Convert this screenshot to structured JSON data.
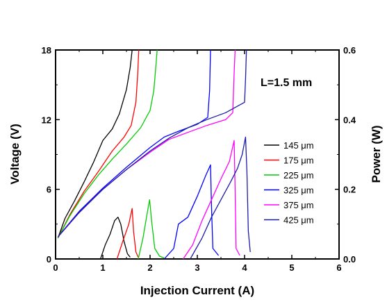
{
  "chart_data": {
    "type": "line",
    "annotation": "L=1.5 mm",
    "xlabel": "Injection Current (A)",
    "ylabel_left": "Voltage (V)",
    "ylabel_right": "Power (W)",
    "xlim": [
      0,
      6
    ],
    "ylim_left": [
      0,
      18
    ],
    "ylim_right": [
      0,
      0.6
    ],
    "x_ticks": [
      "0",
      "1",
      "2",
      "3",
      "4",
      "5",
      "6"
    ],
    "y_left_ticks": [
      "0",
      "6",
      "12",
      "18"
    ],
    "y_right_ticks": [
      "0.0",
      "0.2",
      "0.4",
      "0.6"
    ],
    "legend_position": "right-center",
    "series": [
      {
        "name": "145 μm",
        "color": "#000000",
        "voltage": [
          [
            0.05,
            1.8
          ],
          [
            0.2,
            3.5
          ],
          [
            0.4,
            5.0
          ],
          [
            0.6,
            6.6
          ],
          [
            0.8,
            8.3
          ],
          [
            1.0,
            10.2
          ],
          [
            1.2,
            11.2
          ],
          [
            1.35,
            12.5
          ],
          [
            1.5,
            14.6
          ],
          [
            1.58,
            16.5
          ],
          [
            1.62,
            18.0
          ]
        ],
        "power": [
          [
            0.95,
            0.0
          ],
          [
            1.05,
            0.04
          ],
          [
            1.15,
            0.07
          ],
          [
            1.25,
            0.11
          ],
          [
            1.32,
            0.12
          ],
          [
            1.38,
            0.1
          ],
          [
            1.45,
            0.05
          ],
          [
            1.52,
            0.015
          ],
          [
            1.58,
            0.005
          ]
        ]
      },
      {
        "name": "175 μm",
        "color": "#ff0000",
        "voltage": [
          [
            0.05,
            1.8
          ],
          [
            0.3,
            3.8
          ],
          [
            0.6,
            5.8
          ],
          [
            0.9,
            7.5
          ],
          [
            1.2,
            9.3
          ],
          [
            1.45,
            10.5
          ],
          [
            1.6,
            11.5
          ],
          [
            1.7,
            13.5
          ],
          [
            1.74,
            16.0
          ],
          [
            1.76,
            18.0
          ]
        ],
        "power": [
          [
            1.3,
            0.0
          ],
          [
            1.42,
            0.05
          ],
          [
            1.55,
            0.1
          ],
          [
            1.62,
            0.145
          ],
          [
            1.65,
            0.08
          ],
          [
            1.7,
            0.02
          ],
          [
            1.75,
            0.005
          ]
        ]
      },
      {
        "name": "225 μm",
        "color": "#00cc00",
        "voltage": [
          [
            0.05,
            1.8
          ],
          [
            0.3,
            3.7
          ],
          [
            0.6,
            5.6
          ],
          [
            0.9,
            7.2
          ],
          [
            1.2,
            8.6
          ],
          [
            1.5,
            9.9
          ],
          [
            1.8,
            11.3
          ],
          [
            2.0,
            12.8
          ],
          [
            2.08,
            14.5
          ],
          [
            2.12,
            16.5
          ],
          [
            2.15,
            18.0
          ]
        ],
        "power": [
          [
            1.75,
            0.0
          ],
          [
            1.85,
            0.06
          ],
          [
            1.95,
            0.14
          ],
          [
            1.99,
            0.17
          ],
          [
            2.04,
            0.1
          ],
          [
            2.1,
            0.03
          ],
          [
            2.2,
            0.008
          ],
          [
            2.3,
            0.003
          ]
        ]
      },
      {
        "name": "325 μm",
        "color": "#0000ff",
        "voltage": [
          [
            0.05,
            1.9
          ],
          [
            0.5,
            4.1
          ],
          [
            1.0,
            6.1
          ],
          [
            1.5,
            7.9
          ],
          [
            2.0,
            9.6
          ],
          [
            2.3,
            10.5
          ],
          [
            2.6,
            11.0
          ],
          [
            3.0,
            11.6
          ],
          [
            3.22,
            12.2
          ],
          [
            3.26,
            14.5
          ],
          [
            3.28,
            18.0
          ]
        ],
        "power": [
          [
            2.3,
            0.0
          ],
          [
            2.5,
            0.03
          ],
          [
            2.6,
            0.1
          ],
          [
            2.8,
            0.12
          ],
          [
            3.0,
            0.18
          ],
          [
            3.18,
            0.24
          ],
          [
            3.28,
            0.27
          ],
          [
            3.3,
            0.15
          ],
          [
            3.33,
            0.03
          ],
          [
            3.45,
            0.01
          ]
        ]
      },
      {
        "name": "375 μm",
        "color": "#ff00ff",
        "voltage": [
          [
            0.05,
            1.9
          ],
          [
            0.5,
            4.0
          ],
          [
            1.0,
            6.0
          ],
          [
            1.5,
            7.7
          ],
          [
            2.0,
            9.2
          ],
          [
            2.4,
            10.3
          ],
          [
            2.8,
            10.9
          ],
          [
            3.2,
            11.5
          ],
          [
            3.6,
            12.0
          ],
          [
            3.75,
            12.6
          ],
          [
            3.78,
            16.0
          ],
          [
            3.8,
            18.0
          ]
        ],
        "power": [
          [
            2.7,
            0.0
          ],
          [
            2.9,
            0.04
          ],
          [
            3.1,
            0.11
          ],
          [
            3.3,
            0.17
          ],
          [
            3.5,
            0.23
          ],
          [
            3.68,
            0.28
          ],
          [
            3.78,
            0.34
          ],
          [
            3.8,
            0.2
          ],
          [
            3.82,
            0.03
          ],
          [
            3.9,
            0.01
          ]
        ]
      },
      {
        "name": "425 μm",
        "color": "#1a1aa8",
        "voltage": [
          [
            0.05,
            1.9
          ],
          [
            0.5,
            4.0
          ],
          [
            1.0,
            6.0
          ],
          [
            1.5,
            7.7
          ],
          [
            2.0,
            9.3
          ],
          [
            2.4,
            10.4
          ],
          [
            2.8,
            11.3
          ],
          [
            3.2,
            12.0
          ],
          [
            3.6,
            12.6
          ],
          [
            4.0,
            13.5
          ],
          [
            4.02,
            15.5
          ],
          [
            4.04,
            18.0
          ]
        ],
        "power": [
          [
            2.85,
            0.0
          ],
          [
            3.1,
            0.06
          ],
          [
            3.3,
            0.12
          ],
          [
            3.5,
            0.17
          ],
          [
            3.7,
            0.22
          ],
          [
            3.85,
            0.26
          ],
          [
            3.95,
            0.3
          ],
          [
            4.02,
            0.35
          ],
          [
            4.05,
            0.25
          ],
          [
            4.08,
            0.08
          ],
          [
            4.12,
            0.02
          ]
        ]
      }
    ]
  }
}
